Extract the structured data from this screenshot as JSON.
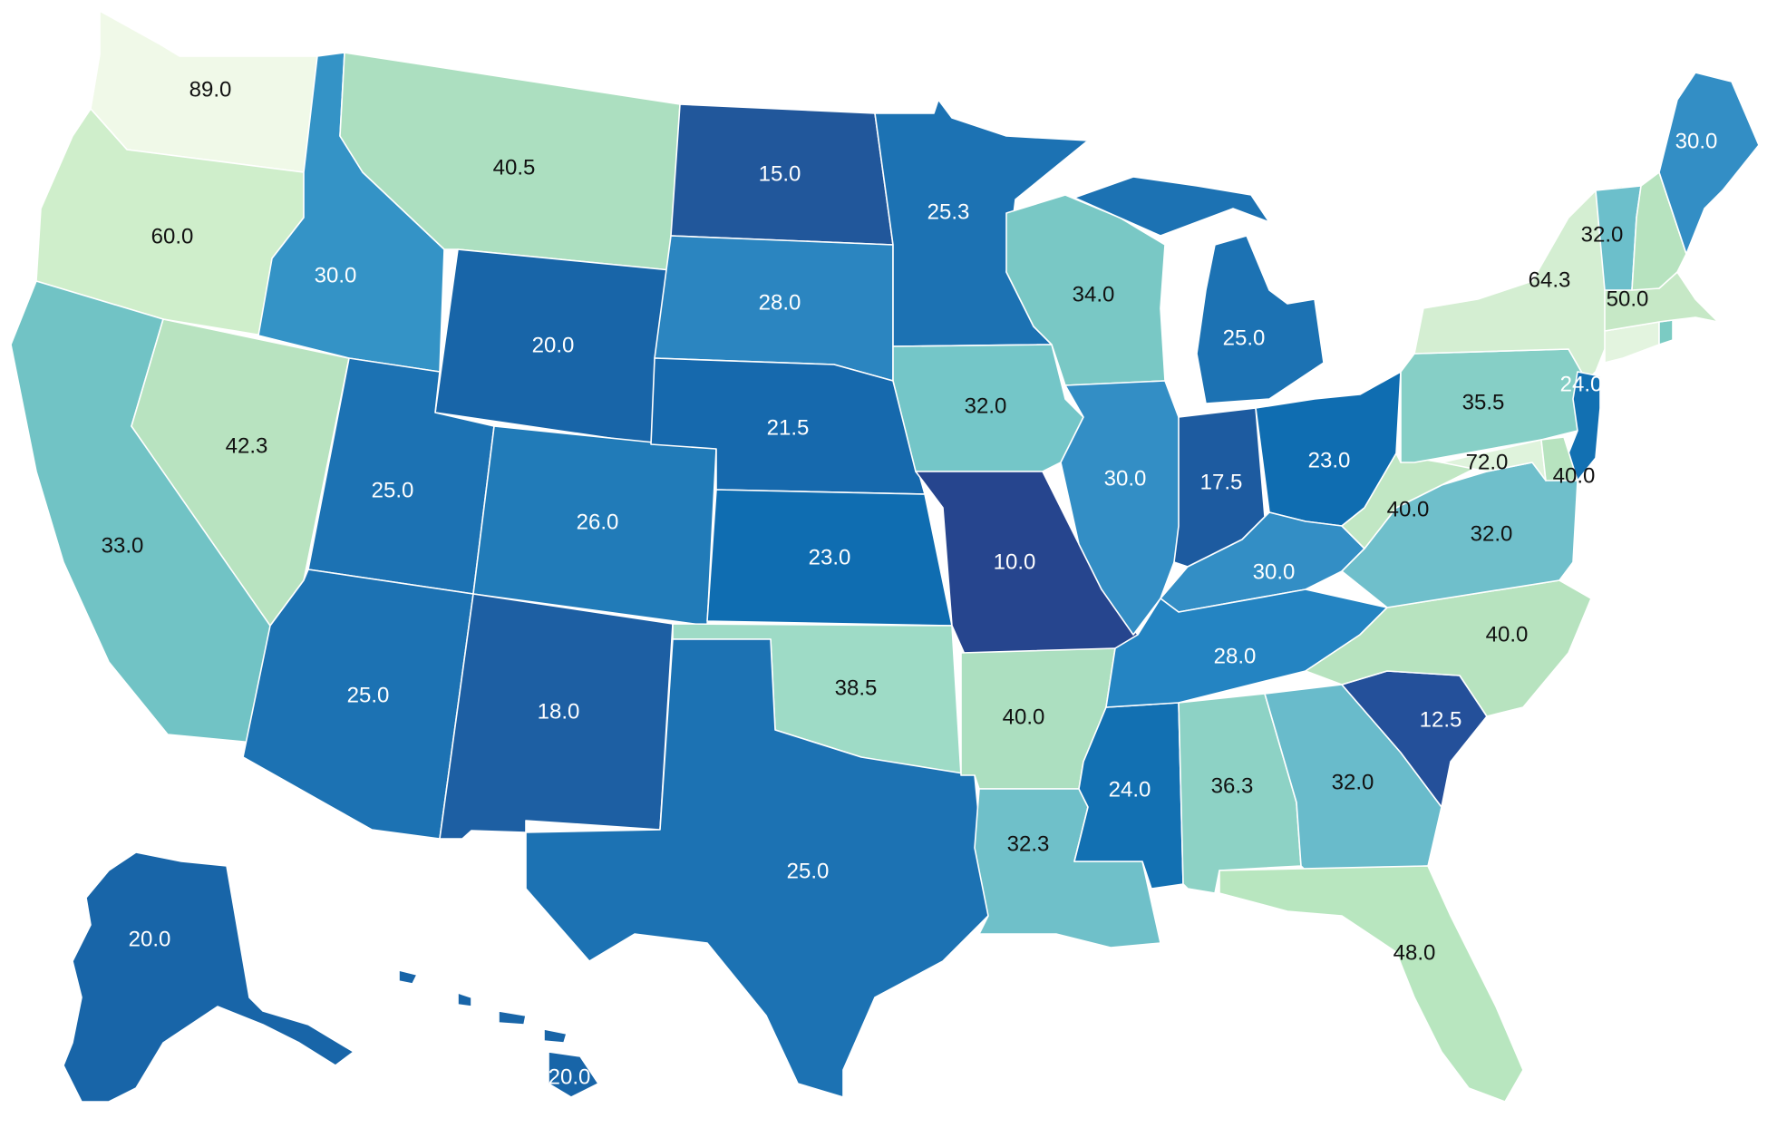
{
  "map": {
    "legend": "none",
    "color_scale": [
      "#f0f9e8",
      "#ccebc5",
      "#a8ddb5",
      "#7bccc4",
      "#43a2ca",
      "#0868ac",
      "#253494"
    ],
    "states": [
      {
        "id": "WA",
        "value": "89.0",
        "color": "#f0f9e8"
      },
      {
        "id": "OR",
        "value": "60.0",
        "color": "#cfeecb"
      },
      {
        "id": "CA",
        "value": "33.0",
        "color": "#71c3c5"
      },
      {
        "id": "NV",
        "value": "42.3",
        "color": "#b8e3c0"
      },
      {
        "id": "ID",
        "value": "30.0",
        "color": "#3493c6"
      },
      {
        "id": "MT",
        "value": "40.5",
        "color": "#acdfc0"
      },
      {
        "id": "WY",
        "value": "20.0",
        "color": "#1865a8"
      },
      {
        "id": "UT",
        "value": "25.0",
        "color": "#1c72b3"
      },
      {
        "id": "AZ",
        "value": "25.0",
        "color": "#1c72b3"
      },
      {
        "id": "CO",
        "value": "26.0",
        "color": "#217bb8"
      },
      {
        "id": "NM",
        "value": "18.0",
        "color": "#1d5fa3"
      },
      {
        "id": "ND",
        "value": "15.0",
        "color": "#21579b"
      },
      {
        "id": "SD",
        "value": "28.0",
        "color": "#2b85c0"
      },
      {
        "id": "NE",
        "value": "21.5",
        "color": "#1669ad"
      },
      {
        "id": "KS",
        "value": "23.0",
        "color": "#0f6db1"
      },
      {
        "id": "OK",
        "value": "38.5",
        "color": "#9edbc6"
      },
      {
        "id": "TX",
        "value": "25.0",
        "color": "#1c72b3"
      },
      {
        "id": "MN",
        "value": "25.3",
        "color": "#1c72b3"
      },
      {
        "id": "IA",
        "value": "32.0",
        "color": "#74c6c8"
      },
      {
        "id": "MO",
        "value": "10.0",
        "color": "#26458e"
      },
      {
        "id": "AR",
        "value": "40.0",
        "color": "#acdfc0"
      },
      {
        "id": "LA",
        "value": "32.3",
        "color": "#6fc0c9"
      },
      {
        "id": "WI",
        "value": "34.0",
        "color": "#79c8c5"
      },
      {
        "id": "IL",
        "value": "30.0",
        "color": "#338ec5"
      },
      {
        "id": "MS",
        "value": "24.0",
        "color": "#1270b2"
      },
      {
        "id": "MI",
        "value": "25.0",
        "color": "#1c72b3"
      },
      {
        "id": "IN",
        "value": "17.5",
        "color": "#1d5ba0"
      },
      {
        "id": "KY",
        "value": "30.0",
        "color": "#338ec5"
      },
      {
        "id": "TN",
        "value": "28.0",
        "color": "#2484c2"
      },
      {
        "id": "AL",
        "value": "36.3",
        "color": "#8dd2c5"
      },
      {
        "id": "GA",
        "value": "32.0",
        "color": "#69bbcb"
      },
      {
        "id": "FL",
        "value": "48.0",
        "color": "#b8e6bf"
      },
      {
        "id": "SC",
        "value": "12.5",
        "color": "#24509a"
      },
      {
        "id": "NC",
        "value": "40.0",
        "color": "#b7e3bf"
      },
      {
        "id": "VA",
        "value": "32.0",
        "color": "#6fbfcb"
      },
      {
        "id": "WV",
        "value": "40.0",
        "color": "#c1e7c4"
      },
      {
        "id": "OH",
        "value": "23.0",
        "color": "#0f6db1"
      },
      {
        "id": "PA",
        "value": "35.5",
        "color": "#86cfc6"
      },
      {
        "id": "NY",
        "value": "64.3",
        "color": "#d4eed2"
      },
      {
        "id": "MD",
        "value": "72.0",
        "color": "#dff3dc"
      },
      {
        "id": "DE",
        "value": "40.0",
        "color": "#b7e3bf"
      },
      {
        "id": "NJ",
        "value": "24.0",
        "color": "#1270b2"
      },
      {
        "id": "CT",
        "value": "",
        "color": "#e3f4df"
      },
      {
        "id": "RI",
        "value": "",
        "color": "#7bcbc3"
      },
      {
        "id": "MA",
        "value": "50.0",
        "color": "#c6e8c6"
      },
      {
        "id": "VT",
        "value": "32.0",
        "color": "#6cbfcb"
      },
      {
        "id": "NH",
        "value": "",
        "color": "#b7e3bf"
      },
      {
        "id": "ME",
        "value": "30.0",
        "color": "#338ec5"
      },
      {
        "id": "AK",
        "value": "20.0",
        "color": "#1865a8"
      },
      {
        "id": "HI",
        "value": "20.0",
        "color": "#1865a8"
      }
    ]
  }
}
